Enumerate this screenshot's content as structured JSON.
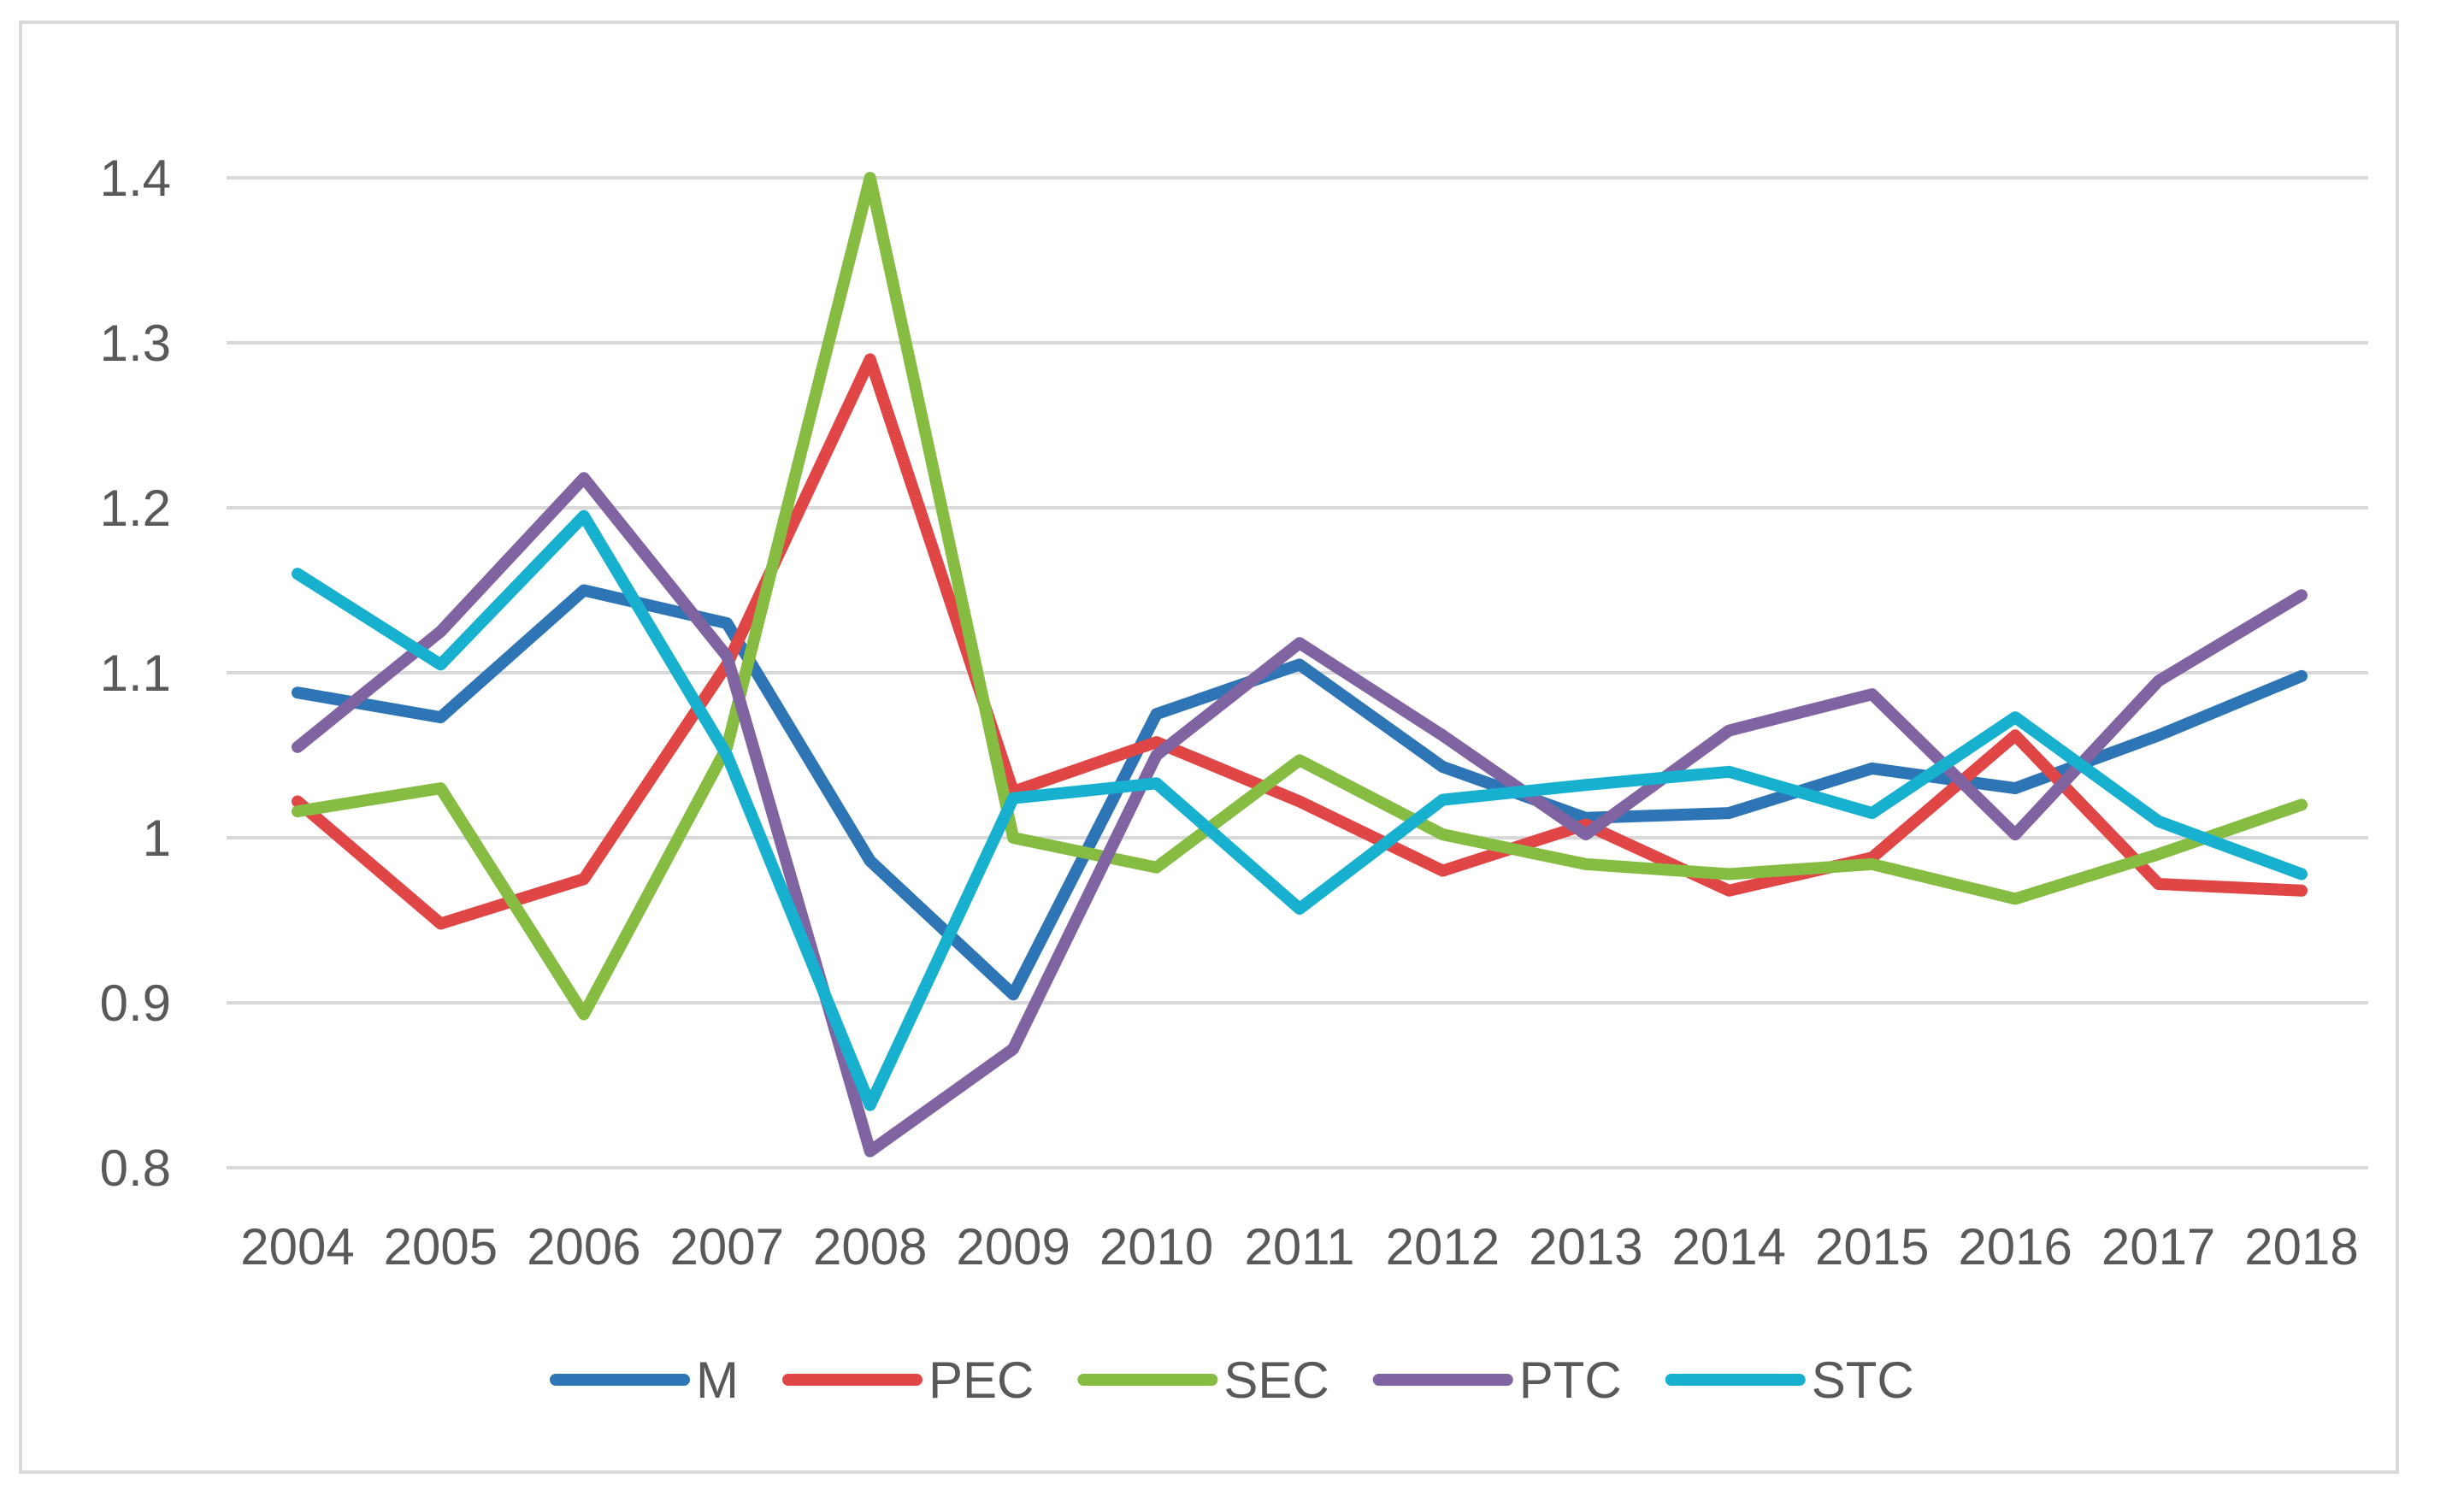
{
  "chart_data": {
    "type": "line",
    "title": "",
    "xlabel": "",
    "ylabel": "",
    "categories": [
      "2004",
      "2005",
      "2006",
      "2007",
      "2008",
      "2009",
      "2010",
      "2011",
      "2012",
      "2013",
      "2014",
      "2015",
      "2016",
      "2017",
      "2018"
    ],
    "ylim": [
      0.8,
      1.4
    ],
    "yticks": [
      0.8,
      0.9,
      1,
      1.1,
      1.2,
      1.3,
      1.4
    ],
    "ytick_labels": [
      "0.8",
      "0.9",
      "1",
      "1.1",
      "1.2",
      "1.3",
      "1.4"
    ],
    "grid": true,
    "legend_position": "bottom",
    "series": [
      {
        "name": "M",
        "color": "#2e75b6",
        "values": [
          1.088,
          1.073,
          1.15,
          1.13,
          0.986,
          0.905,
          1.075,
          1.105,
          1.043,
          1.012,
          1.015,
          1.042,
          1.03,
          1.062,
          1.098
        ]
      },
      {
        "name": "PEC",
        "color": "#e04646",
        "values": [
          1.022,
          0.948,
          0.975,
          1.105,
          1.29,
          1.028,
          1.058,
          1.022,
          0.98,
          1.008,
          0.968,
          0.988,
          1.062,
          0.972,
          0.968
        ]
      },
      {
        "name": "SEC",
        "color": "#86bc42",
        "values": [
          1.016,
          1.03,
          0.893,
          1.055,
          1.4,
          1.0,
          0.982,
          1.047,
          1.002,
          0.984,
          0.978,
          0.984,
          0.963,
          0.99,
          1.02
        ]
      },
      {
        "name": "PTC",
        "color": "#8064a2",
        "values": [
          1.055,
          1.125,
          1.218,
          1.11,
          0.81,
          0.872,
          1.05,
          1.118,
          1.062,
          1.002,
          1.065,
          1.087,
          1.002,
          1.095,
          1.147
        ]
      },
      {
        "name": "STC",
        "color": "#17b0cf",
        "values": [
          1.16,
          1.105,
          1.195,
          1.05,
          0.838,
          1.024,
          1.033,
          0.957,
          1.023,
          1.032,
          1.04,
          1.015,
          1.073,
          1.01,
          0.978
        ]
      }
    ]
  }
}
